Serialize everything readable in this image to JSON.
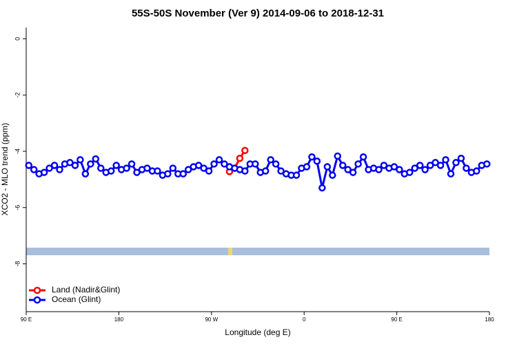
{
  "chart_data": {
    "type": "line",
    "title": "55S-50S November (Ver 9)   2014-09-06 to 2018-12-31",
    "x_label": "Longitude (deg E)",
    "y_label": "XCO2 - MLO trend (ppm)",
    "xlim": [
      90,
      540
    ],
    "xticks": [
      {
        "value": 90,
        "label": "90 E"
      },
      {
        "value": 180,
        "label": "180"
      },
      {
        "value": 270,
        "label": "90 W"
      },
      {
        "value": 360,
        "label": "0"
      },
      {
        "value": 450,
        "label": "90 E"
      },
      {
        "value": 540,
        "label": "180"
      }
    ],
    "ylim": [
      -9.7,
      0.4
    ],
    "yticks": [
      0,
      -2,
      -4,
      -6,
      -8
    ],
    "legend": "bottom-left",
    "series": [
      {
        "name": "Land (Nadir&Glint)",
        "color": "#ff0000",
        "x": [
          287.5,
          292.5,
          297.5,
          302.5
        ],
        "values": [
          -4.72,
          -4.6,
          -4.25,
          -3.97
        ]
      },
      {
        "name": "Ocean (Glint)",
        "color": "#0000ee",
        "x": [
          92.5,
          97.5,
          102.5,
          107.5,
          112.5,
          117.5,
          122.5,
          127.5,
          132.5,
          137.5,
          142.5,
          147.5,
          152.5,
          157.5,
          162.5,
          167.5,
          172.5,
          177.5,
          182.5,
          187.5,
          192.5,
          197.5,
          202.5,
          207.5,
          212.5,
          217.5,
          222.5,
          227.5,
          232.5,
          237.5,
          242.5,
          247.5,
          252.5,
          257.5,
          262.5,
          267.5,
          272.5,
          277.5,
          282.5,
          287.5,
          292.5,
          297.5,
          302.5,
          307.5,
          312.5,
          317.5,
          322.5,
          327.5,
          332.5,
          337.5,
          342.5,
          347.5,
          352.5,
          357.5,
          362.5,
          367.5,
          372.5,
          377.5,
          382.5,
          387.5,
          392.5,
          397.5,
          402.5,
          407.5,
          412.5,
          417.5,
          422.5,
          427.5,
          432.5,
          437.5,
          442.5,
          447.5,
          452.5,
          457.5,
          462.5,
          467.5,
          472.5,
          477.5,
          482.5,
          487.5,
          492.5,
          497.5,
          502.5,
          507.5,
          512.5,
          517.5,
          522.5,
          527.5,
          532.5,
          537.5
        ],
        "values": [
          -4.5,
          -4.65,
          -4.8,
          -4.75,
          -4.6,
          -4.5,
          -4.65,
          -4.45,
          -4.4,
          -4.5,
          -4.3,
          -4.8,
          -4.45,
          -4.27,
          -4.6,
          -4.75,
          -4.7,
          -4.5,
          -4.65,
          -4.6,
          -4.45,
          -4.75,
          -4.65,
          -4.6,
          -4.7,
          -4.7,
          -4.85,
          -4.8,
          -4.6,
          -4.8,
          -4.8,
          -4.65,
          -4.55,
          -4.5,
          -4.6,
          -4.7,
          -4.45,
          -4.3,
          -4.45,
          -4.55,
          -4.6,
          -4.65,
          -4.7,
          -4.45,
          -4.45,
          -4.75,
          -4.7,
          -4.3,
          -4.45,
          -4.7,
          -4.8,
          -4.85,
          -4.85,
          -4.6,
          -4.55,
          -4.2,
          -4.35,
          -5.3,
          -4.55,
          -4.85,
          -4.17,
          -4.5,
          -4.65,
          -4.75,
          -4.45,
          -4.2,
          -4.65,
          -4.6,
          -4.65,
          -4.5,
          -4.6,
          -4.55,
          -4.65,
          -4.8,
          -4.75,
          -4.6,
          -4.5,
          -4.65,
          -4.5,
          -4.4,
          -4.5,
          -4.3,
          -4.8,
          -4.4,
          -4.25,
          -4.6,
          -4.75,
          -4.7,
          -4.5,
          -4.45
        ]
      }
    ]
  }
}
